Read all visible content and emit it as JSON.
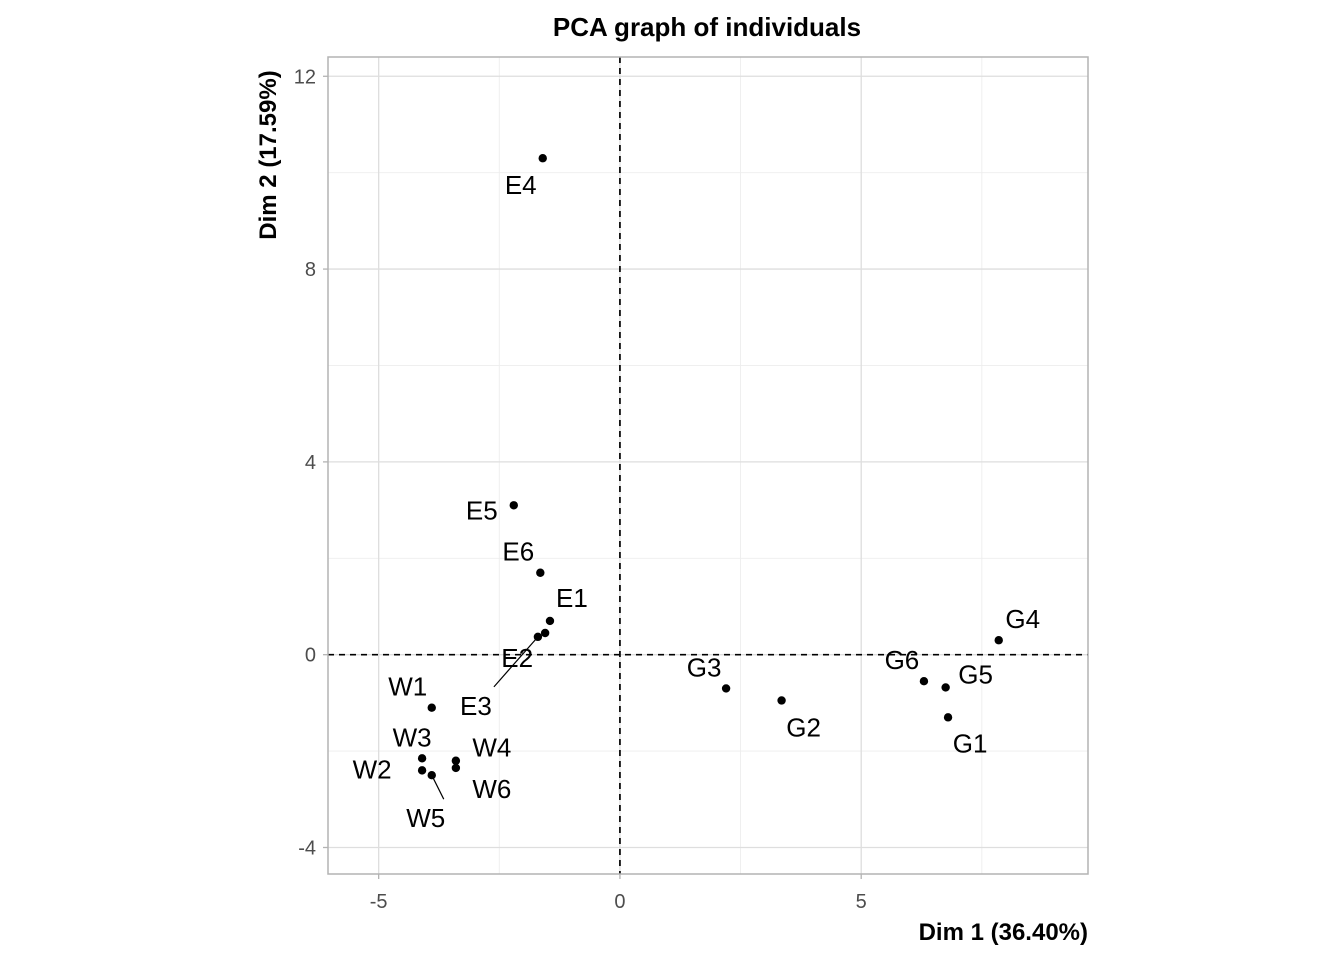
{
  "chart_data": {
    "type": "scatter",
    "title": "PCA graph of individuals",
    "xlabel": "Dim 1 (36.40%)",
    "ylabel": "Dim 2 (17.59%)",
    "xlim": [
      -6.05,
      9.7
    ],
    "ylim": [
      -4.55,
      12.4
    ],
    "x_ticks": [
      -5,
      0,
      5
    ],
    "x_tick_labels": [
      "-5",
      "0",
      "5"
    ],
    "y_ticks": [
      -4,
      0,
      4,
      8,
      12
    ],
    "y_tick_labels": [
      "-4",
      "0",
      "4",
      "8",
      "12"
    ],
    "grid": true,
    "reference_lines": {
      "x": 0,
      "y": 0,
      "style": "dashed"
    },
    "points": [
      {
        "label": "E4",
        "x": -1.6,
        "y": 10.3
      },
      {
        "label": "E5",
        "x": -2.2,
        "y": 3.1
      },
      {
        "label": "E6",
        "x": -1.65,
        "y": 1.7
      },
      {
        "label": "E1",
        "x": -1.45,
        "y": 0.7
      },
      {
        "label": "E2",
        "x": -1.55,
        "y": 0.45
      },
      {
        "label": "E3",
        "x": -1.7,
        "y": 0.37
      },
      {
        "label": "W1",
        "x": -3.9,
        "y": -1.1
      },
      {
        "label": "W3",
        "x": -4.1,
        "y": -2.15
      },
      {
        "label": "W4",
        "x": -3.4,
        "y": -2.2
      },
      {
        "label": "W6",
        "x": -3.4,
        "y": -2.35
      },
      {
        "label": "W2",
        "x": -4.1,
        "y": -2.4
      },
      {
        "label": "W5",
        "x": -3.9,
        "y": -2.5
      },
      {
        "label": "G3",
        "x": 2.2,
        "y": -0.7
      },
      {
        "label": "G2",
        "x": 3.35,
        "y": -0.95
      },
      {
        "label": "G6",
        "x": 6.3,
        "y": -0.55
      },
      {
        "label": "G5",
        "x": 6.75,
        "y": -0.68
      },
      {
        "label": "G1",
        "x": 6.8,
        "y": -1.3
      },
      {
        "label": "G4",
        "x": 7.85,
        "y": 0.3
      }
    ]
  }
}
